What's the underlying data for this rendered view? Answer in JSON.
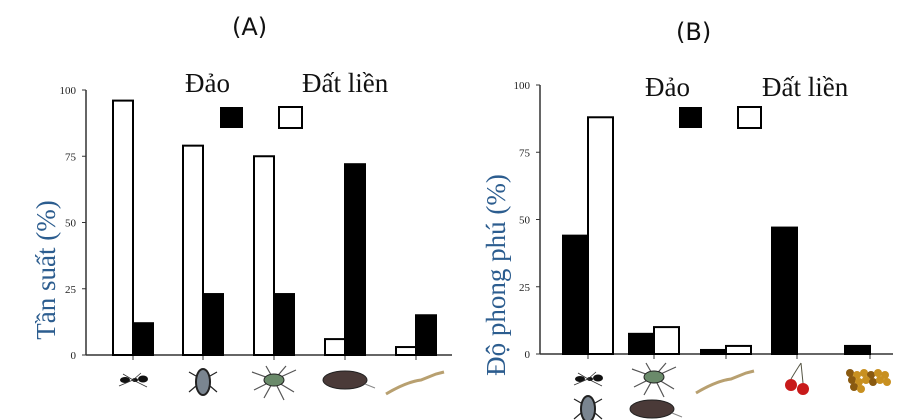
{
  "chart_data": [
    {
      "type": "bar",
      "title": "(A)",
      "ylabel": "Tần suất (%)",
      "ylim": [
        0,
        100
      ],
      "yticks": [
        "0",
        "25",
        "50",
        "75",
        "100"
      ],
      "legend": {
        "placement": "top",
        "island_label": "Đảo",
        "mainland_label": "Đất liền"
      },
      "categories": [
        "ant-icon",
        "beetle-icon",
        "spider-icon",
        "isopod-icon",
        "lizard-icon"
      ],
      "series": [
        {
          "name": "Đảo",
          "color": "#000000",
          "values": [
            12,
            23,
            23,
            72,
            15
          ]
        },
        {
          "name": "Đất liền",
          "color": "#ffffff",
          "values": [
            96,
            79,
            75,
            6,
            3
          ]
        }
      ],
      "bar_order": [
        "Đất liền",
        "Đảo"
      ]
    },
    {
      "type": "bar",
      "title": "(B)",
      "ylabel": "Độ phong phú (%)",
      "ylim": [
        0,
        100
      ],
      "yticks": [
        "0",
        "25",
        "50",
        "75",
        "100"
      ],
      "legend": {
        "placement": "top",
        "island_label": "Đảo",
        "mainland_label": "Đất liền"
      },
      "categories": [
        "ant-beetle-icon",
        "spider-isopod-icon",
        "lizard-icon",
        "cherry-icon",
        "seeds-icon"
      ],
      "series": [
        {
          "name": "Đảo",
          "color": "#000000",
          "values": [
            44,
            7.5,
            1.5,
            47,
            3
          ]
        },
        {
          "name": "Đất liền",
          "color": "#ffffff",
          "values": [
            88,
            10,
            3,
            0,
            0
          ]
        }
      ],
      "bar_order": [
        "Đảo",
        "Đất liền"
      ]
    }
  ],
  "colors": {
    "axis_label": "#2c5d8f",
    "island": "#000000",
    "mainland": "#ffffff"
  }
}
